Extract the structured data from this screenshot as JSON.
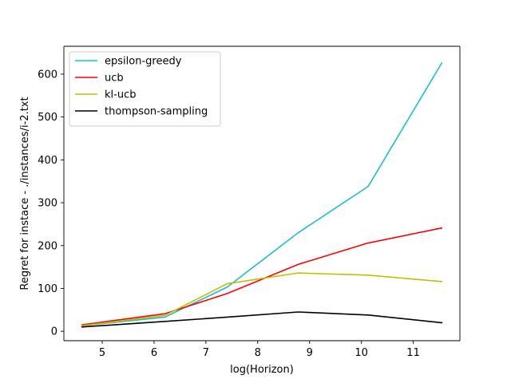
{
  "chart_data": {
    "type": "line",
    "title": "",
    "xlabel": "log(Horizon)",
    "ylabel": "Regret for instace - ./instances/i-2.txt",
    "xlim": [
      4.26,
      11.9
    ],
    "ylim": [
      -22,
      665
    ],
    "xticks": [
      5,
      6,
      7,
      8,
      9,
      10,
      11
    ],
    "xtick_labels": [
      "5",
      "6",
      "7",
      "8",
      "9",
      "10",
      "11"
    ],
    "yticks": [
      0,
      100,
      200,
      300,
      400,
      500,
      600
    ],
    "ytick_labels": [
      "0",
      "100",
      "200",
      "300",
      "400",
      "500",
      "600"
    ],
    "grid": false,
    "legend_position": "upper-left",
    "x": [
      4.61,
      6.21,
      7.41,
      8.78,
      10.13,
      11.55
    ],
    "series": [
      {
        "name": "epsilon-greedy",
        "color": "#17becf",
        "values": [
          13,
          33,
          103,
          230,
          338,
          626
        ]
      },
      {
        "name": "ucb",
        "color": "#ff0000",
        "values": [
          15,
          41,
          88,
          156,
          206,
          241
        ]
      },
      {
        "name": "kl-ucb",
        "color": "#bfbf00",
        "values": [
          13,
          37,
          111,
          136,
          131,
          116
        ]
      },
      {
        "name": "thompson-sampling",
        "color": "#000000",
        "values": [
          10,
          23,
          33,
          45,
          38,
          20
        ]
      }
    ]
  }
}
